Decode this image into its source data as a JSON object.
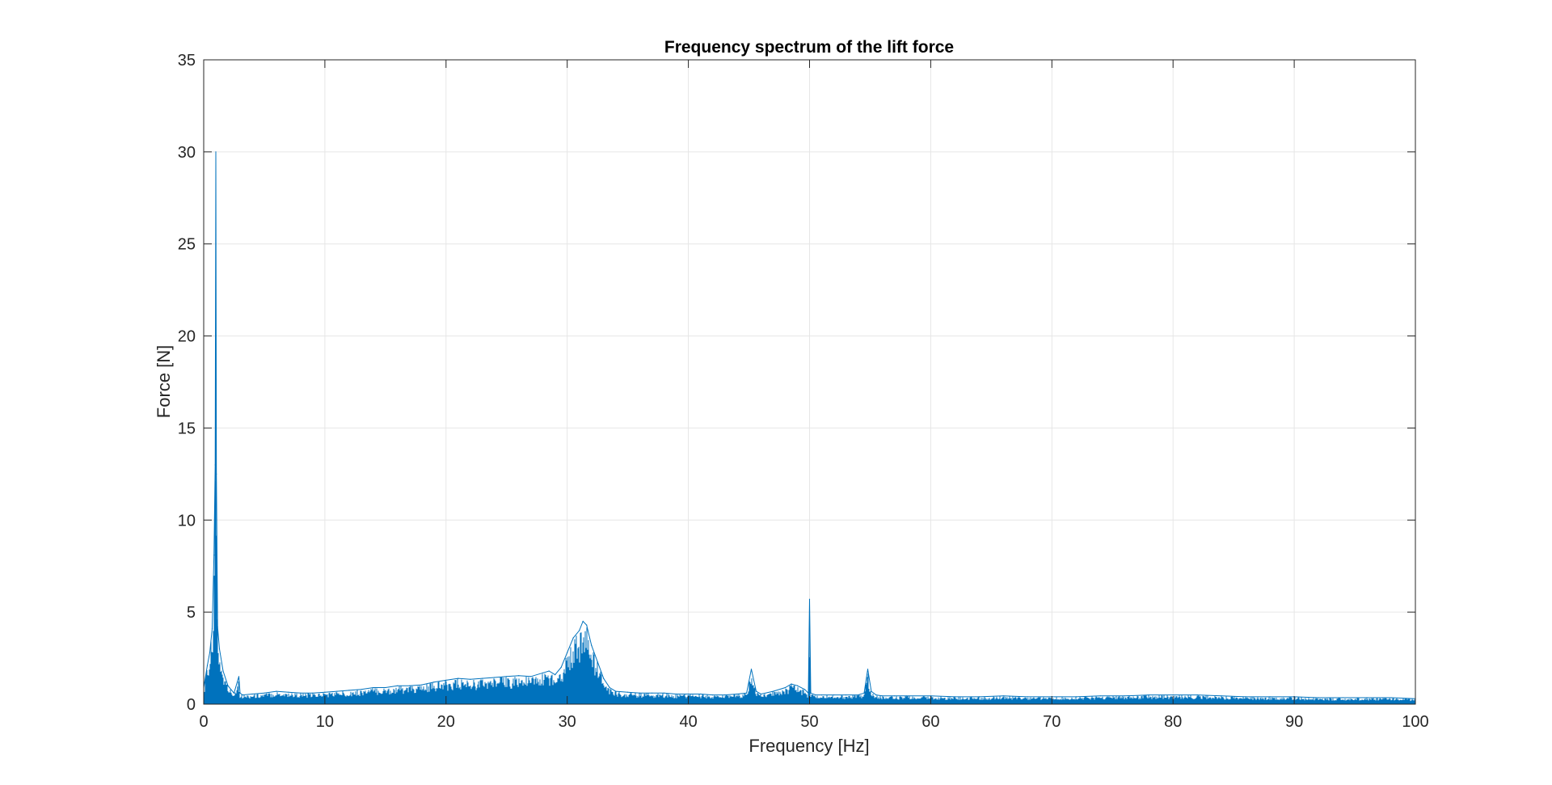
{
  "chart_data": {
    "type": "line",
    "title": "Frequency spectrum of the lift force",
    "xlabel": "Frequency [Hz]",
    "ylabel": "Force [N]",
    "xlim": [
      0,
      100
    ],
    "ylim": [
      0,
      35
    ],
    "xticks": [
      0,
      10,
      20,
      30,
      40,
      50,
      60,
      70,
      80,
      90,
      100
    ],
    "yticks": [
      0,
      5,
      10,
      15,
      20,
      25,
      30,
      35
    ],
    "xtick_labels": [
      "0",
      "10",
      "20",
      "30",
      "40",
      "50",
      "60",
      "70",
      "80",
      "90",
      "100"
    ],
    "ytick_labels": [
      "0",
      "5",
      "10",
      "15",
      "20",
      "25",
      "30",
      "35"
    ],
    "grid": true,
    "box": true,
    "colors": {
      "line": "#0072BD",
      "grid": "#e6e6e6",
      "axes": "#262626"
    },
    "series": [
      {
        "x": [
          0,
          0.3,
          0.5,
          0.7,
          0.85,
          0.95,
          1.0,
          1.05,
          1.15,
          1.3,
          1.6,
          2.0,
          2.5,
          2.9,
          3.0,
          3.2,
          4,
          5,
          6,
          7,
          8,
          9,
          10,
          11,
          12,
          13,
          14,
          15,
          16,
          17,
          18,
          19,
          20,
          21,
          22,
          23,
          24,
          25,
          26,
          27,
          28,
          28.5,
          29,
          29.5,
          30,
          30.5,
          31,
          31.3,
          31.6,
          32,
          32.5,
          33,
          33.5,
          34,
          35,
          36,
          37,
          38,
          39,
          40,
          41,
          42,
          43,
          44,
          44.8,
          45.2,
          45.6,
          46,
          47,
          48,
          48.5,
          49,
          49.6,
          49.9,
          50.0,
          50.1,
          50.5,
          51,
          52,
          53,
          54,
          54.5,
          54.8,
          55.1,
          55.5,
          56,
          57,
          58,
          60,
          62,
          64,
          66,
          68,
          70,
          72,
          74,
          76,
          78,
          80,
          82,
          84,
          86,
          88,
          90,
          92,
          94,
          96,
          98,
          100
        ],
        "y": [
          0.9,
          2.1,
          2.8,
          4.1,
          8.1,
          13.0,
          30.0,
          12.5,
          4.2,
          3.0,
          1.8,
          1.0,
          0.6,
          1.5,
          0.6,
          0.5,
          0.55,
          0.6,
          0.7,
          0.65,
          0.6,
          0.6,
          0.65,
          0.7,
          0.75,
          0.8,
          0.9,
          0.9,
          1.0,
          1.0,
          1.05,
          1.2,
          1.3,
          1.4,
          1.35,
          1.4,
          1.45,
          1.5,
          1.55,
          1.5,
          1.7,
          1.8,
          1.6,
          2.0,
          2.8,
          3.6,
          4.0,
          4.5,
          4.3,
          3.2,
          2.3,
          1.4,
          0.9,
          0.7,
          0.65,
          0.6,
          0.6,
          0.6,
          0.55,
          0.55,
          0.55,
          0.5,
          0.5,
          0.55,
          0.6,
          1.9,
          0.7,
          0.55,
          0.7,
          0.9,
          1.1,
          1.0,
          0.8,
          0.6,
          5.7,
          0.6,
          0.5,
          0.5,
          0.5,
          0.5,
          0.5,
          0.6,
          1.9,
          0.7,
          0.5,
          0.45,
          0.45,
          0.45,
          0.45,
          0.4,
          0.4,
          0.45,
          0.4,
          0.4,
          0.4,
          0.45,
          0.45,
          0.5,
          0.5,
          0.5,
          0.45,
          0.4,
          0.4,
          0.4,
          0.35,
          0.35,
          0.35,
          0.35,
          0.3
        ]
      }
    ]
  }
}
